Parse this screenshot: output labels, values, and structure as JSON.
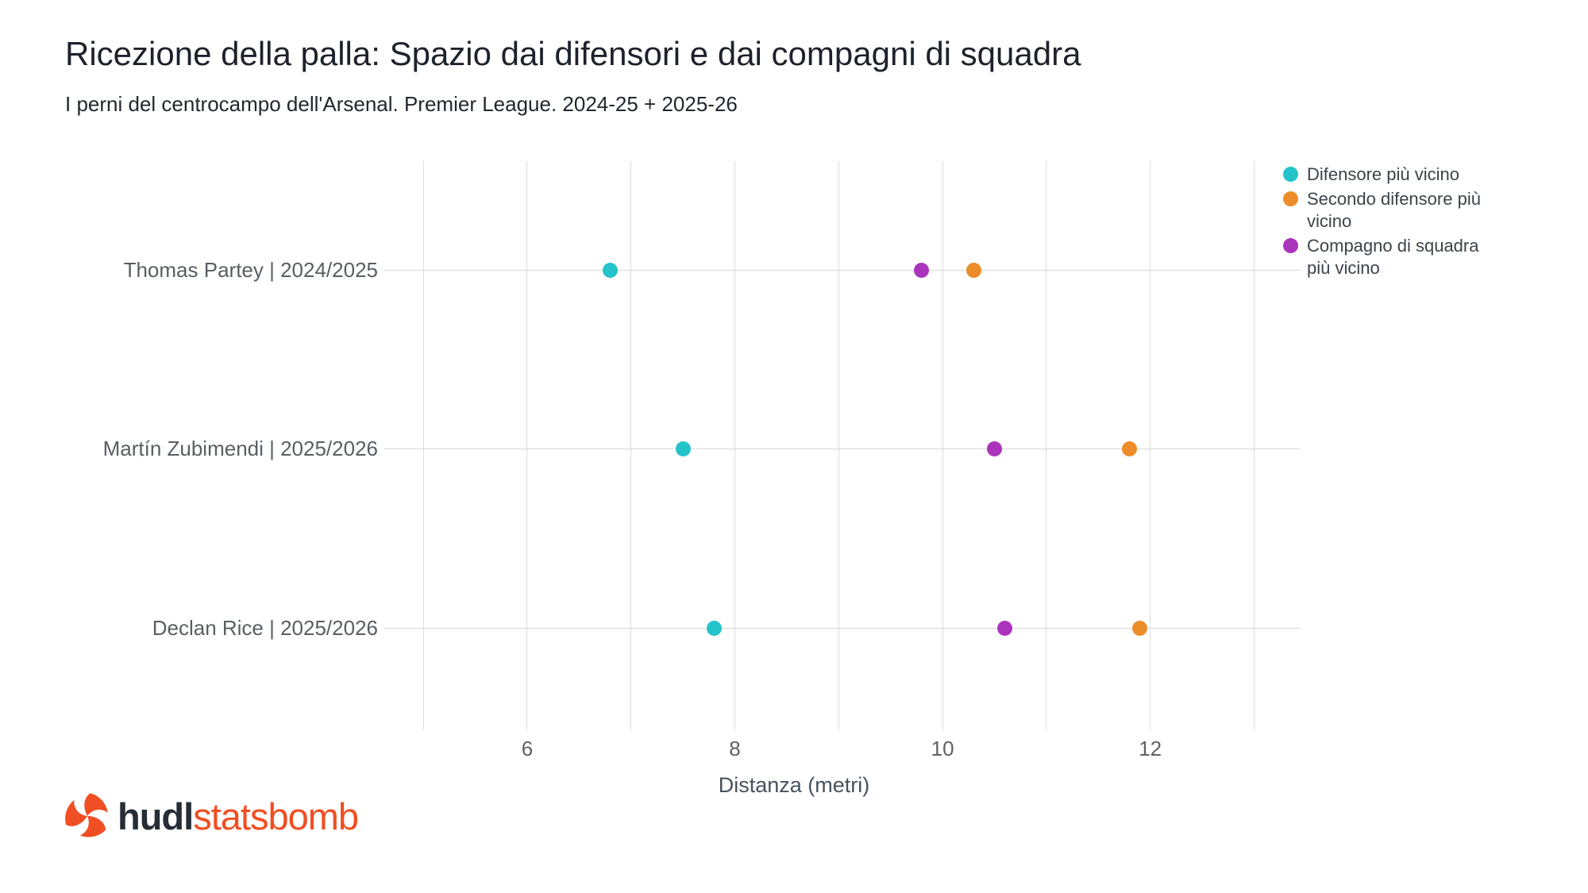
{
  "title": "Ricezione della palla: Spazio dai difensori e dai compagni di squadra",
  "subtitle": "I perni del centrocampo dell'Arsenal. Premier League. 2024-25 + 2025-26",
  "chart_data": {
    "type": "scatter",
    "variant": "horizontal-dot-plot",
    "categories": [
      "Thomas Partey | 2024/2025",
      "Martín Zubimendi | 2025/2026",
      "Declan Rice | 2025/2026"
    ],
    "series": [
      {
        "name": "Difensore più vicino",
        "color": "#23c3c9",
        "values": [
          6.8,
          7.5,
          7.8
        ]
      },
      {
        "name": "Secondo difensore più vicino",
        "color": "#ec8d29",
        "values": [
          10.3,
          11.8,
          11.9
        ]
      },
      {
        "name": "Compagno di squadra più vicino",
        "color": "#ab34bc",
        "values": [
          9.8,
          10.5,
          10.6
        ]
      }
    ],
    "xlabel": "Distanza (metri)",
    "xticks": [
      6,
      8,
      10,
      12
    ],
    "xlim": [
      4.67,
      13.44
    ],
    "x_gridlines": [
      5,
      6,
      7,
      8,
      9,
      10,
      11,
      12,
      13
    ],
    "grid": "vertical gridlines with one horizontal line per category",
    "legend_position": "top-right"
  },
  "footer": {
    "hudl": "hudl",
    "statsbomb": "statsbomb"
  },
  "colors": {
    "title": "#1d222b",
    "gridline": "#dcdcdc",
    "axis_text": "#616161",
    "statsbomb_orange": "#f04e23"
  }
}
